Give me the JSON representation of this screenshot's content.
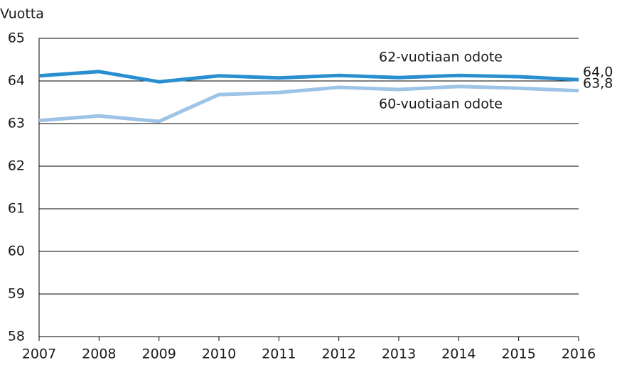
{
  "chart_data": {
    "type": "line",
    "y_label": "Vuotta",
    "x": [
      2007,
      2008,
      2009,
      2010,
      2011,
      2012,
      2013,
      2014,
      2015,
      2016
    ],
    "series": [
      {
        "name": "62-vuotiaan odote",
        "color": "#2a8fd0",
        "values": [
          64.12,
          64.22,
          63.98,
          64.12,
          64.07,
          64.13,
          64.08,
          64.13,
          64.1,
          64.03
        ],
        "value_labels": [
          null,
          null,
          null,
          null,
          null,
          null,
          null,
          null,
          null,
          "64,0"
        ]
      },
      {
        "name": "60-vuotiaan odote",
        "color": "#9dc3e6",
        "values": [
          63.07,
          63.18,
          63.05,
          63.68,
          63.73,
          63.85,
          63.8,
          63.87,
          63.83,
          63.77
        ],
        "value_labels": [
          null,
          null,
          null,
          null,
          null,
          null,
          null,
          null,
          null,
          "63,8"
        ]
      }
    ],
    "xlim": [
      2007,
      2016
    ],
    "xticks": [
      2007,
      2008,
      2009,
      2010,
      2011,
      2012,
      2013,
      2014,
      2015,
      2016
    ],
    "ylim": [
      58,
      65
    ],
    "yticks": [
      58,
      59,
      60,
      61,
      62,
      63,
      64,
      65
    ],
    "grid": true
  }
}
